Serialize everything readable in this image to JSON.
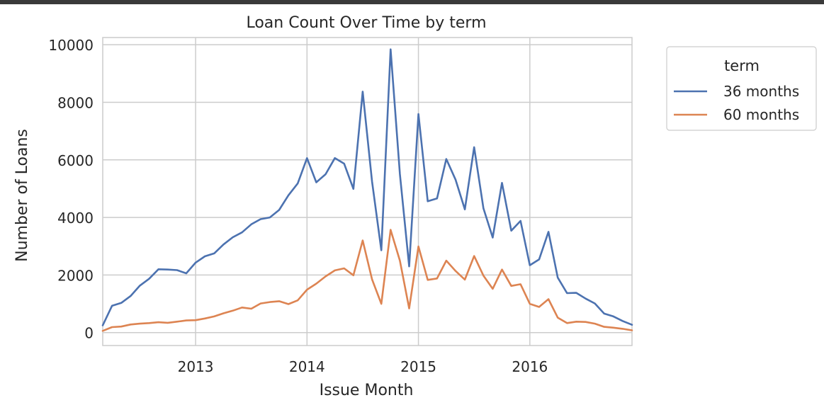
{
  "chart_data": {
    "type": "line",
    "title": "Loan Count Over Time by term",
    "xlabel": "Issue Month",
    "ylabel": "Number of Loans",
    "x_tick_labels": [
      "2013",
      "2014",
      "2015",
      "2016"
    ],
    "y_tick_labels": [
      "0",
      "2000",
      "4000",
      "6000",
      "8000",
      "10000"
    ],
    "ylim": [
      -450,
      10250
    ],
    "xlim": [
      "2012-03",
      "2016-12"
    ],
    "grid": true,
    "legend_title": "term",
    "legend_position": "outside-top-right",
    "x": [
      "2012-03",
      "2012-04",
      "2012-05",
      "2012-06",
      "2012-07",
      "2012-08",
      "2012-09",
      "2012-10",
      "2012-11",
      "2012-12",
      "2013-01",
      "2013-02",
      "2013-03",
      "2013-04",
      "2013-05",
      "2013-06",
      "2013-07",
      "2013-08",
      "2013-09",
      "2013-10",
      "2013-11",
      "2013-12",
      "2014-01",
      "2014-02",
      "2014-03",
      "2014-04",
      "2014-05",
      "2014-06",
      "2014-07",
      "2014-08",
      "2014-09",
      "2014-10",
      "2014-11",
      "2014-12",
      "2015-01",
      "2015-02",
      "2015-03",
      "2015-04",
      "2015-05",
      "2015-06",
      "2015-07",
      "2015-08",
      "2015-09",
      "2015-10",
      "2015-11",
      "2015-12",
      "2016-01",
      "2016-02",
      "2016-03",
      "2016-04",
      "2016-05",
      "2016-06",
      "2016-07",
      "2016-08",
      "2016-09",
      "2016-10",
      "2016-11",
      "2016-12"
    ],
    "series": [
      {
        "name": "36 months",
        "color": "#4c72b0",
        "values": [
          250,
          930,
          1030,
          1270,
          1630,
          1870,
          2200,
          2190,
          2170,
          2060,
          2430,
          2650,
          2750,
          3060,
          3310,
          3480,
          3760,
          3940,
          4000,
          4260,
          4770,
          5180,
          6060,
          5220,
          5500,
          6060,
          5870,
          4990,
          8370,
          5250,
          2860,
          9840,
          5510,
          2300,
          7590,
          4560,
          4660,
          6030,
          5310,
          4280,
          6440,
          4320,
          3300,
          5200,
          3540,
          3880,
          2340,
          2540,
          3500,
          1910,
          1370,
          1380,
          1180,
          1010,
          660,
          560,
          400,
          270
        ]
      },
      {
        "name": "60 months",
        "color": "#dd8452",
        "values": [
          60,
          190,
          210,
          280,
          310,
          330,
          360,
          340,
          380,
          420,
          430,
          490,
          560,
          670,
          760,
          870,
          830,
          1010,
          1060,
          1090,
          990,
          1120,
          1490,
          1700,
          1950,
          2160,
          2230,
          1990,
          3200,
          1850,
          1000,
          3570,
          2500,
          840,
          2990,
          1830,
          1880,
          2500,
          2140,
          1840,
          2660,
          1980,
          1520,
          2190,
          1620,
          1680,
          1000,
          890,
          1160,
          520,
          330,
          380,
          370,
          310,
          200,
          170,
          130,
          80
        ]
      }
    ]
  }
}
